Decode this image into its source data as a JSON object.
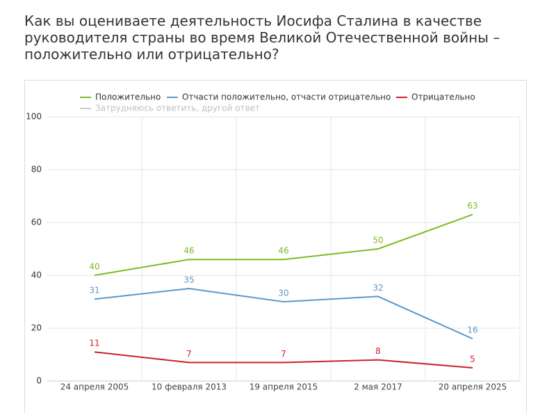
{
  "chart_data": {
    "type": "line",
    "title": "Как вы оцениваете деятельность Иосифа Сталина в качестве руководителя страны во время Великой Отечественной войны – положительно или отрицательно?",
    "categories": [
      "24 апреля 2005",
      "10 февраля 2013",
      "19 апреля 2015",
      "2 мая 2017",
      "20 апреля 2025"
    ],
    "series": [
      {
        "name": "Положительно",
        "color": "#7cbb1e",
        "values": [
          40,
          46,
          46,
          50,
          63
        ]
      },
      {
        "name": "Отчасти положительно, отчасти отрицательно",
        "color": "#5b97c9",
        "values": [
          31,
          35,
          30,
          32,
          16
        ]
      },
      {
        "name": "Отрицательно",
        "color": "#cc1f27",
        "values": [
          11,
          7,
          7,
          8,
          5
        ]
      },
      {
        "name": "Затрудняюсь ответить, другой ответ",
        "color": "#c8c8c8",
        "visible": false,
        "values": [
          null,
          null,
          null,
          null,
          null
        ]
      }
    ],
    "ylim": [
      0,
      100
    ],
    "yticks": [
      0,
      20,
      40,
      60,
      80,
      100
    ],
    "grid": true
  }
}
